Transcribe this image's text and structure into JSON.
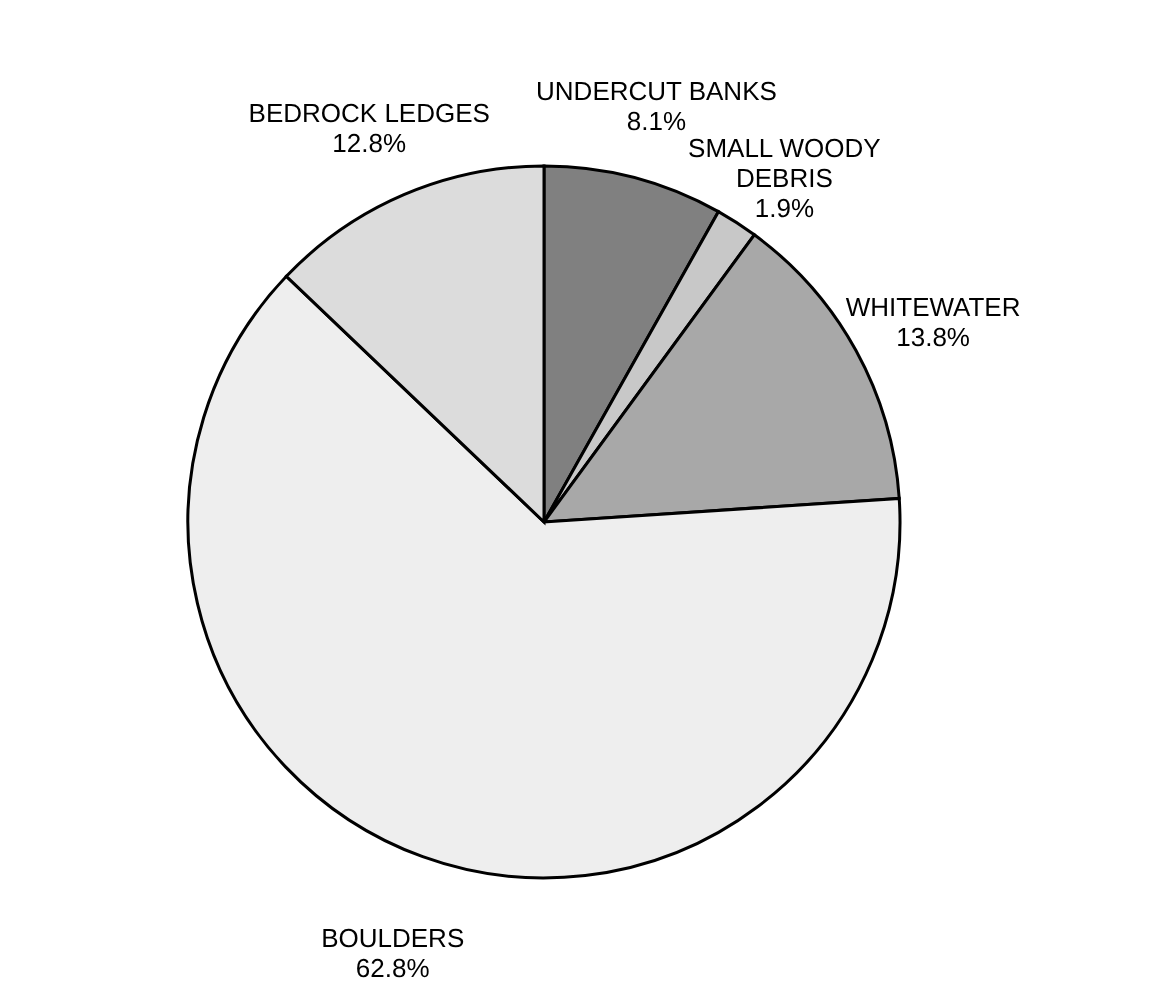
{
  "chart_data": {
    "type": "pie",
    "categories": [
      "UNDERCUT BANKS",
      "SMALL WOODY DEBRIS",
      "WHITEWATER",
      "BOULDERS",
      "BEDROCK LEDGES"
    ],
    "values": [
      8.1,
      1.9,
      13.8,
      62.8,
      12.8
    ],
    "value_labels": [
      "8.1%",
      "1.9%",
      "13.8%",
      "62.8%",
      "12.8%"
    ],
    "colors": [
      "#808080",
      "#c8c8c8",
      "#a8a8a8",
      "#eeeeee",
      "#dcdcdc"
    ],
    "legend": false
  }
}
